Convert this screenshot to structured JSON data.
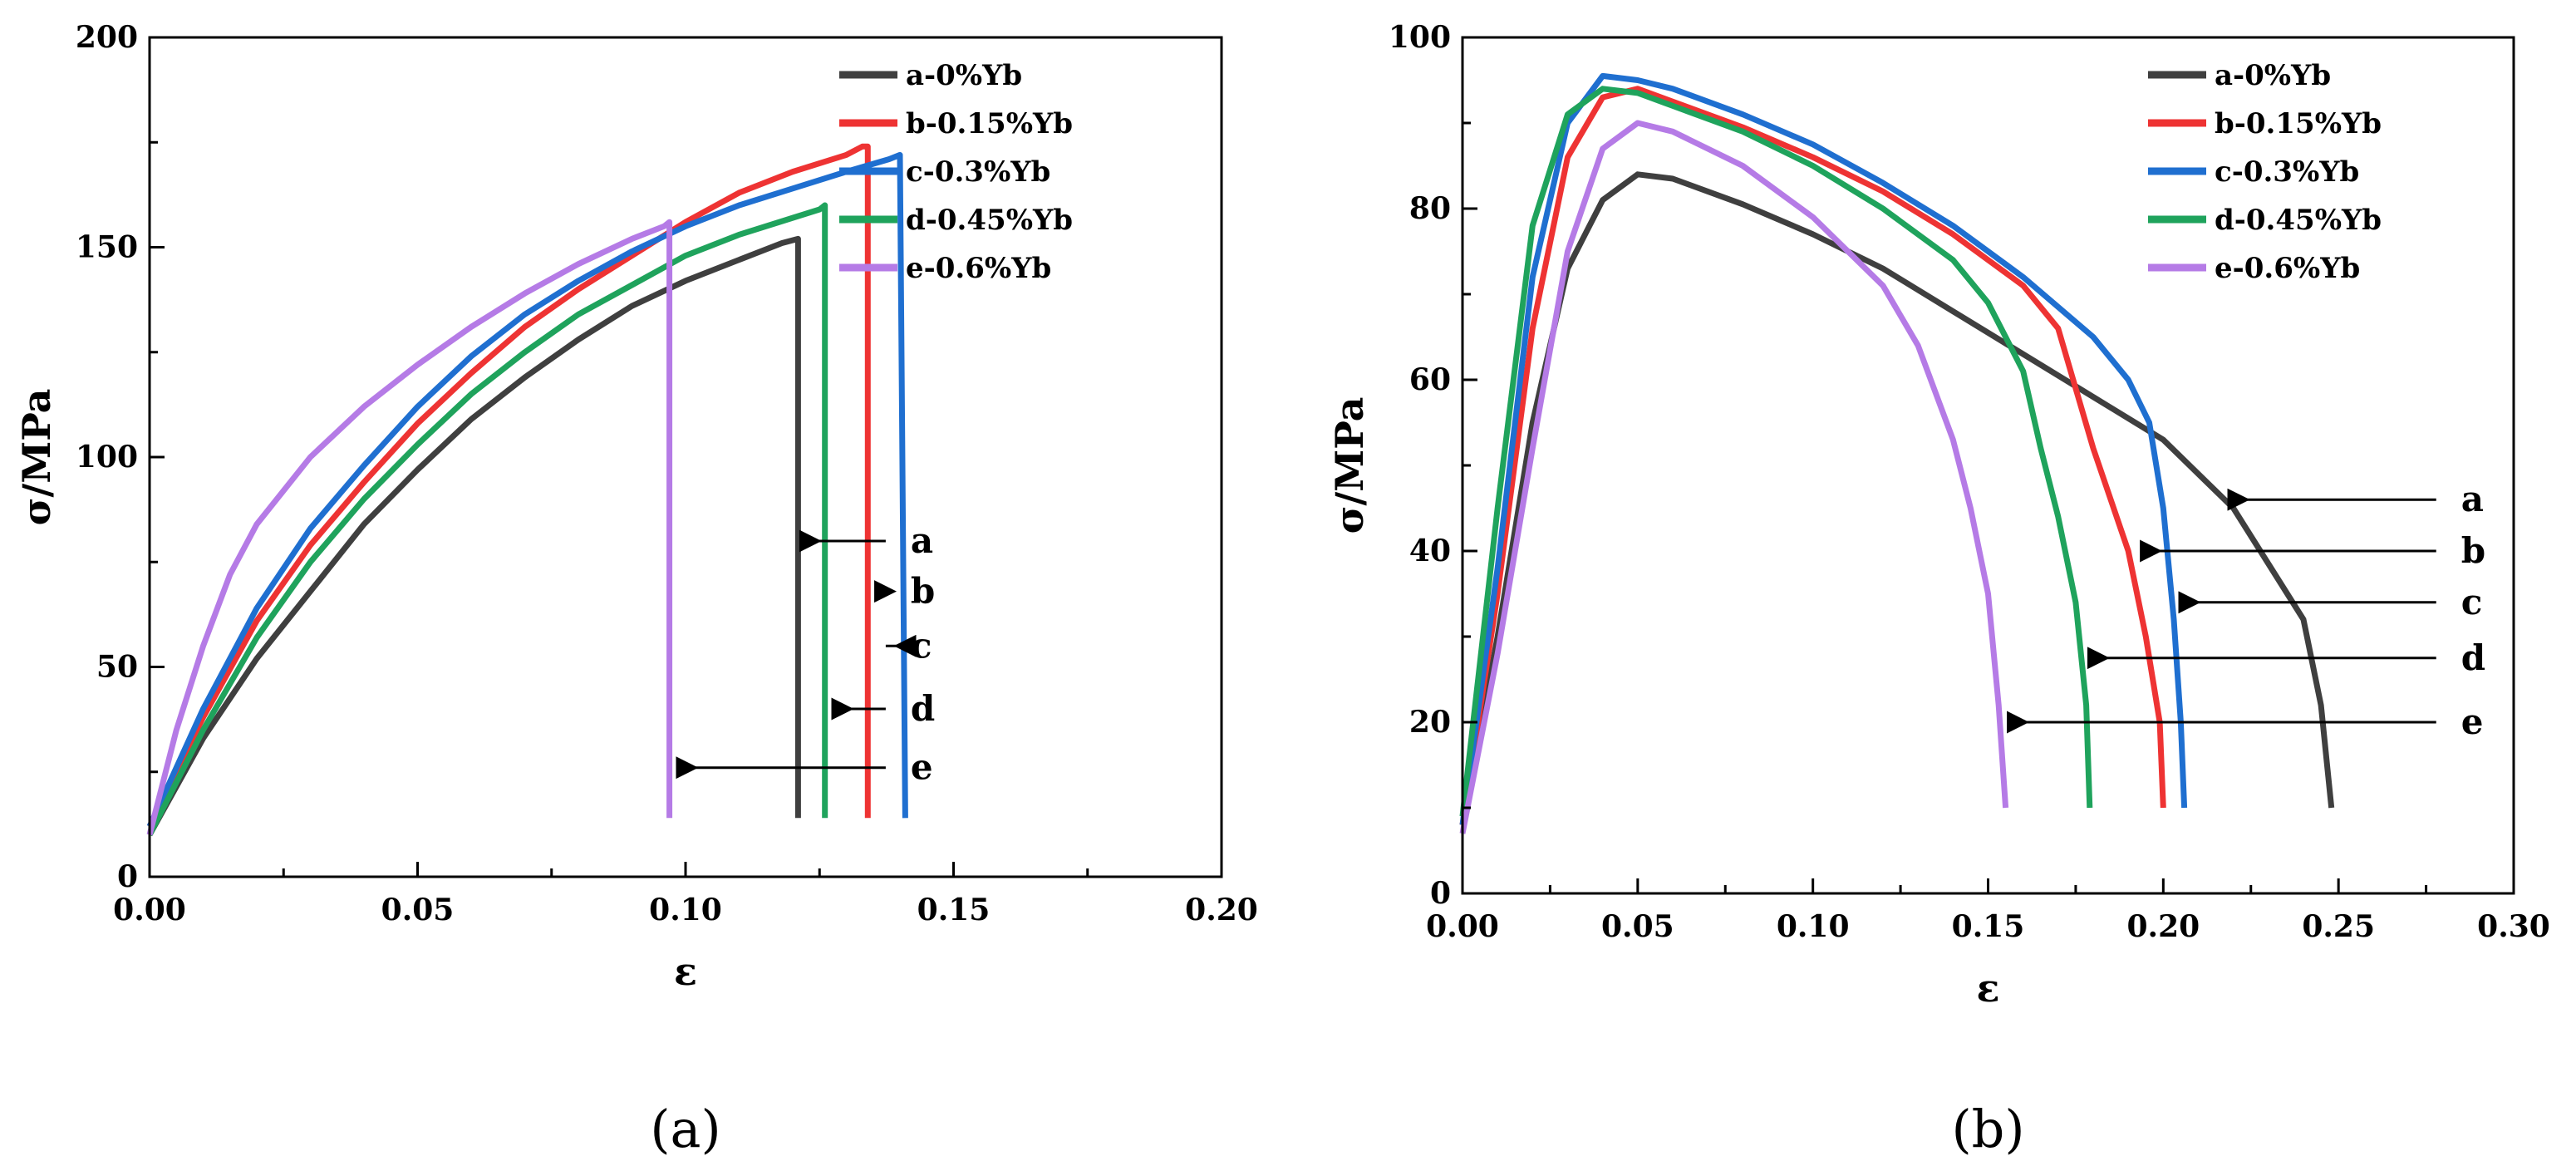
{
  "chart_data": [
    {
      "type": "line",
      "panel_label": "(a)",
      "xlabel": "ε",
      "ylabel": "σ/MPa",
      "xlim": [
        0,
        0.2
      ],
      "ylim": [
        0,
        200
      ],
      "x_ticks": [
        0.0,
        0.05,
        0.1,
        0.15,
        0.2
      ],
      "x_tick_labels": [
        "0.00",
        "0.05",
        "0.10",
        "0.15",
        "0.20"
      ],
      "y_ticks": [
        0,
        50,
        100,
        150,
        200
      ],
      "y_tick_labels": [
        "0",
        "50",
        "100",
        "150",
        "200"
      ],
      "grid": false,
      "legend_position": "top-right",
      "series": [
        {
          "key": "a",
          "name": "a-0%Yb",
          "color": "#3f3f3f",
          "points": [
            [
              0,
              10
            ],
            [
              0.01,
              33
            ],
            [
              0.02,
              52
            ],
            [
              0.03,
              68
            ],
            [
              0.04,
              84
            ],
            [
              0.05,
              97
            ],
            [
              0.06,
              109
            ],
            [
              0.07,
              119
            ],
            [
              0.08,
              128
            ],
            [
              0.09,
              136
            ],
            [
              0.1,
              142
            ],
            [
              0.11,
              147
            ],
            [
              0.118,
              151
            ],
            [
              0.121,
              152
            ],
            [
              0.121,
              14
            ]
          ]
        },
        {
          "key": "b",
          "name": "b-0.15%Yb",
          "color": "#ee3333",
          "points": [
            [
              0,
              12
            ],
            [
              0.01,
              38
            ],
            [
              0.02,
              61
            ],
            [
              0.03,
              79
            ],
            [
              0.04,
              94
            ],
            [
              0.05,
              108
            ],
            [
              0.06,
              120
            ],
            [
              0.07,
              131
            ],
            [
              0.08,
              140
            ],
            [
              0.09,
              148
            ],
            [
              0.1,
              156
            ],
            [
              0.11,
              163
            ],
            [
              0.12,
              168
            ],
            [
              0.13,
              172
            ],
            [
              0.133,
              174
            ],
            [
              0.134,
              174
            ],
            [
              0.134,
              14
            ]
          ]
        },
        {
          "key": "c",
          "name": "c-0.3%Yb",
          "color": "#1f6fd0",
          "points": [
            [
              0,
              12
            ],
            [
              0.01,
              40
            ],
            [
              0.02,
              64
            ],
            [
              0.03,
              83
            ],
            [
              0.04,
              98
            ],
            [
              0.05,
              112
            ],
            [
              0.06,
              124
            ],
            [
              0.07,
              134
            ],
            [
              0.08,
              142
            ],
            [
              0.09,
              149
            ],
            [
              0.1,
              155
            ],
            [
              0.11,
              160
            ],
            [
              0.12,
              164
            ],
            [
              0.13,
              168
            ],
            [
              0.138,
              171
            ],
            [
              0.14,
              172
            ],
            [
              0.141,
              14
            ]
          ]
        },
        {
          "key": "d",
          "name": "d-0.45%Yb",
          "color": "#1fa35c",
          "points": [
            [
              0,
              10
            ],
            [
              0.01,
              35
            ],
            [
              0.02,
              57
            ],
            [
              0.03,
              75
            ],
            [
              0.04,
              90
            ],
            [
              0.05,
              103
            ],
            [
              0.06,
              115
            ],
            [
              0.07,
              125
            ],
            [
              0.08,
              134
            ],
            [
              0.09,
              141
            ],
            [
              0.1,
              148
            ],
            [
              0.11,
              153
            ],
            [
              0.12,
              157
            ],
            [
              0.125,
              159
            ],
            [
              0.126,
              160
            ],
            [
              0.126,
              14
            ]
          ]
        },
        {
          "key": "e",
          "name": "e-0.6%Yb",
          "color": "#b57be6",
          "points": [
            [
              0,
              10
            ],
            [
              0.005,
              35
            ],
            [
              0.01,
              55
            ],
            [
              0.015,
              72
            ],
            [
              0.02,
              84
            ],
            [
              0.03,
              100
            ],
            [
              0.04,
              112
            ],
            [
              0.05,
              122
            ],
            [
              0.06,
              131
            ],
            [
              0.07,
              139
            ],
            [
              0.08,
              146
            ],
            [
              0.09,
              152
            ],
            [
              0.096,
              155
            ],
            [
              0.097,
              156
            ],
            [
              0.097,
              14
            ]
          ]
        }
      ],
      "annotations": [
        {
          "text": "a",
          "arrow_to": [
            0.121,
            80
          ],
          "label_x": 0.142
        },
        {
          "text": "b",
          "arrow_to": [
            0.135,
            68
          ],
          "label_x": 0.142
        },
        {
          "text": "c",
          "arrow_to": [
            0.142,
            55
          ],
          "label_x": 0.142
        },
        {
          "text": "d",
          "arrow_to": [
            0.127,
            40
          ],
          "label_x": 0.142
        },
        {
          "text": "e",
          "arrow_to": [
            0.098,
            26
          ],
          "label_x": 0.142
        }
      ]
    },
    {
      "type": "line",
      "panel_label": "(b)",
      "xlabel": "ε",
      "ylabel": "σ/MPa",
      "xlim": [
        0,
        0.3
      ],
      "ylim": [
        0,
        100
      ],
      "x_ticks": [
        0.0,
        0.05,
        0.1,
        0.15,
        0.2,
        0.25,
        0.3
      ],
      "x_tick_labels": [
        "0.00",
        "0.05",
        "0.10",
        "0.15",
        "0.20",
        "0.25",
        "0.30"
      ],
      "y_ticks": [
        0,
        20,
        40,
        60,
        80,
        100
      ],
      "y_tick_labels": [
        "0",
        "20",
        "40",
        "60",
        "80",
        "100"
      ],
      "grid": false,
      "legend_position": "top-right",
      "series": [
        {
          "key": "a",
          "name": "a-0%Yb",
          "color": "#3f3f3f",
          "points": [
            [
              0,
              8
            ],
            [
              0.01,
              30
            ],
            [
              0.02,
              55
            ],
            [
              0.03,
              73
            ],
            [
              0.04,
              81
            ],
            [
              0.05,
              84
            ],
            [
              0.06,
              83.5
            ],
            [
              0.08,
              80.5
            ],
            [
              0.1,
              77
            ],
            [
              0.12,
              73
            ],
            [
              0.14,
              68
            ],
            [
              0.16,
              63
            ],
            [
              0.18,
              58
            ],
            [
              0.2,
              53
            ],
            [
              0.22,
              45
            ],
            [
              0.24,
              32
            ],
            [
              0.245,
              22
            ],
            [
              0.248,
              10
            ]
          ]
        },
        {
          "key": "b",
          "name": "b-0.15%Yb",
          "color": "#ee3333",
          "points": [
            [
              0,
              8
            ],
            [
              0.01,
              35
            ],
            [
              0.02,
              66
            ],
            [
              0.03,
              86
            ],
            [
              0.04,
              93
            ],
            [
              0.05,
              94
            ],
            [
              0.06,
              92.5
            ],
            [
              0.08,
              89.5
            ],
            [
              0.1,
              86
            ],
            [
              0.12,
              82
            ],
            [
              0.14,
              77
            ],
            [
              0.16,
              71
            ],
            [
              0.17,
              66
            ],
            [
              0.18,
              52
            ],
            [
              0.19,
              40
            ],
            [
              0.195,
              30
            ],
            [
              0.199,
              20
            ],
            [
              0.2,
              10
            ]
          ]
        },
        {
          "key": "c",
          "name": "c-0.3%Yb",
          "color": "#1f6fd0",
          "points": [
            [
              0,
              8
            ],
            [
              0.01,
              38
            ],
            [
              0.02,
              72
            ],
            [
              0.03,
              90
            ],
            [
              0.04,
              95.5
            ],
            [
              0.05,
              95
            ],
            [
              0.06,
              94
            ],
            [
              0.08,
              91
            ],
            [
              0.1,
              87.5
            ],
            [
              0.12,
              83
            ],
            [
              0.14,
              78
            ],
            [
              0.16,
              72
            ],
            [
              0.18,
              65
            ],
            [
              0.19,
              60
            ],
            [
              0.196,
              55
            ],
            [
              0.2,
              45
            ],
            [
              0.203,
              32
            ],
            [
              0.205,
              20
            ],
            [
              0.206,
              10
            ]
          ]
        },
        {
          "key": "d",
          "name": "d-0.45%Yb",
          "color": "#1fa35c",
          "points": [
            [
              0,
              9
            ],
            [
              0.01,
              45
            ],
            [
              0.02,
              78
            ],
            [
              0.03,
              91
            ],
            [
              0.04,
              94
            ],
            [
              0.05,
              93.5
            ],
            [
              0.06,
              92
            ],
            [
              0.08,
              89
            ],
            [
              0.1,
              85
            ],
            [
              0.12,
              80
            ],
            [
              0.14,
              74
            ],
            [
              0.15,
              69
            ],
            [
              0.16,
              61
            ],
            [
              0.165,
              52
            ],
            [
              0.17,
              44
            ],
            [
              0.175,
              34
            ],
            [
              0.178,
              22
            ],
            [
              0.179,
              10
            ]
          ]
        },
        {
          "key": "e",
          "name": "e-0.6%Yb",
          "color": "#b57be6",
          "points": [
            [
              0,
              7
            ],
            [
              0.01,
              28
            ],
            [
              0.02,
              52
            ],
            [
              0.03,
              75
            ],
            [
              0.04,
              87
            ],
            [
              0.05,
              90
            ],
            [
              0.06,
              89
            ],
            [
              0.08,
              85
            ],
            [
              0.1,
              79
            ],
            [
              0.12,
              71
            ],
            [
              0.13,
              64
            ],
            [
              0.14,
              53
            ],
            [
              0.145,
              45
            ],
            [
              0.15,
              35
            ],
            [
              0.153,
              22
            ],
            [
              0.155,
              10
            ]
          ]
        }
      ],
      "annotations": [
        {
          "text": "a",
          "arrow_to": [
            0.218,
            46
          ],
          "label_x": 0.285
        },
        {
          "text": "b",
          "arrow_to": [
            0.193,
            40
          ],
          "label_x": 0.285
        },
        {
          "text": "c",
          "arrow_to": [
            0.204,
            34
          ],
          "label_x": 0.285
        },
        {
          "text": "d",
          "arrow_to": [
            0.178,
            27.5
          ],
          "label_x": 0.285
        },
        {
          "text": "e",
          "arrow_to": [
            0.155,
            20
          ],
          "label_x": 0.285
        }
      ]
    }
  ]
}
